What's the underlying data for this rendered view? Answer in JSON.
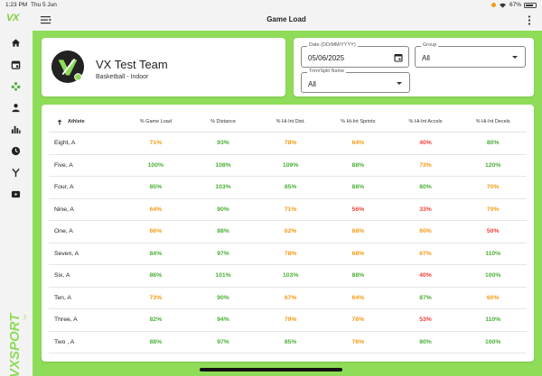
{
  "status_bar": {
    "time": "1:23 PM",
    "date": "Thu 5 Jun",
    "battery": "67%"
  },
  "sidebar": {
    "logo": "VX",
    "brand_vertical": "VXSPORT",
    "trademark": "TM",
    "items": [
      {
        "icon": "home-icon"
      },
      {
        "icon": "calendar-icon"
      },
      {
        "icon": "team-icon",
        "active": true
      },
      {
        "icon": "person-icon"
      },
      {
        "icon": "bar-chart-icon"
      },
      {
        "icon": "clock-icon"
      },
      {
        "icon": "merge-icon"
      },
      {
        "icon": "video-icon"
      }
    ]
  },
  "header": {
    "title": "Game Load"
  },
  "team": {
    "name": "VX Test Team",
    "subtitle": "Basketball - Indoor"
  },
  "filters": {
    "date_label": "Date (DD/MM/YYYY)",
    "date_value": "05/06/2025",
    "group_label": "Group",
    "group_value": "All",
    "trim_label": "Trim/Split Name",
    "trim_value": "All"
  },
  "table": {
    "headers": [
      "Athlete",
      "% Game Load",
      "% Distance",
      "% Hi-Int Dist.",
      "% Hi-Int Sprints",
      "% Hi-Int Accels",
      "% Hi-Int Decels"
    ],
    "rows": [
      {
        "athlete": "Eight, A",
        "values": [
          "71%",
          "93%",
          "78%",
          "64%",
          "40%",
          "80%"
        ]
      },
      {
        "athlete": "Five, A",
        "values": [
          "100%",
          "108%",
          "109%",
          "88%",
          "73%",
          "120%"
        ]
      },
      {
        "athlete": "Four, A",
        "values": [
          "85%",
          "103%",
          "85%",
          "88%",
          "80%",
          "70%"
        ]
      },
      {
        "athlete": "Nine, A",
        "values": [
          "64%",
          "90%",
          "71%",
          "56%",
          "33%",
          "70%"
        ]
      },
      {
        "athlete": "One, A",
        "values": [
          "66%",
          "88%",
          "62%",
          "68%",
          "60%",
          "50%"
        ]
      },
      {
        "athlete": "Seven, A",
        "values": [
          "84%",
          "97%",
          "78%",
          "68%",
          "67%",
          "110%"
        ]
      },
      {
        "athlete": "Six, A",
        "values": [
          "86%",
          "101%",
          "103%",
          "88%",
          "40%",
          "100%"
        ]
      },
      {
        "athlete": "Ten, A",
        "values": [
          "73%",
          "90%",
          "67%",
          "64%",
          "87%",
          "60%"
        ]
      },
      {
        "athlete": "Three, A",
        "values": [
          "82%",
          "94%",
          "79%",
          "76%",
          "53%",
          "110%"
        ]
      },
      {
        "athlete": "Two , A",
        "values": [
          "88%",
          "97%",
          "85%",
          "76%",
          "80%",
          "100%"
        ]
      }
    ]
  },
  "colors": {
    "accent": "#8edc58",
    "good": "#4caf37",
    "medium": "#f59b14",
    "low": "#f0433a"
  }
}
